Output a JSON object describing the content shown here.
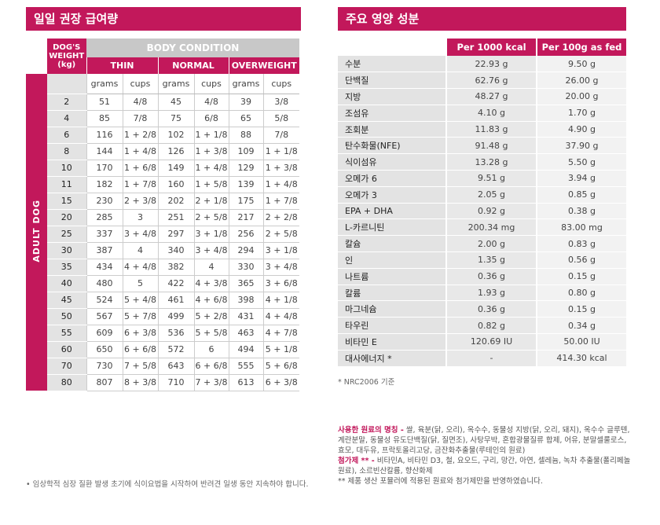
{
  "feeding": {
    "title": "일일 권장 급여량",
    "dog_weight_header": "DOG'S WEIGHT (kg)",
    "body_condition": "BODY CONDITION",
    "categories": [
      "THIN",
      "NORMAL",
      "OVERWEIGHT"
    ],
    "unit_grams": "grams",
    "unit_cups": "cups",
    "side_label": "ADULT DOG",
    "rows": [
      [
        "2",
        "51",
        "4/8",
        "45",
        "4/8",
        "39",
        "3/8"
      ],
      [
        "4",
        "85",
        "7/8",
        "75",
        "6/8",
        "65",
        "5/8"
      ],
      [
        "6",
        "116",
        "1 + 2/8",
        "102",
        "1 + 1/8",
        "88",
        "7/8"
      ],
      [
        "8",
        "144",
        "1 + 4/8",
        "126",
        "1 + 3/8",
        "109",
        "1 + 1/8"
      ],
      [
        "10",
        "170",
        "1 + 6/8",
        "149",
        "1 + 4/8",
        "129",
        "1 + 3/8"
      ],
      [
        "11",
        "182",
        "1 + 7/8",
        "160",
        "1 + 5/8",
        "139",
        "1 + 4/8"
      ],
      [
        "15",
        "230",
        "2 + 3/8",
        "202",
        "2 + 1/8",
        "175",
        "1 + 7/8"
      ],
      [
        "20",
        "285",
        "3",
        "251",
        "2 + 5/8",
        "217",
        "2 + 2/8"
      ],
      [
        "25",
        "337",
        "3 + 4/8",
        "297",
        "3 + 1/8",
        "256",
        "2 + 5/8"
      ],
      [
        "30",
        "387",
        "4",
        "340",
        "3 + 4/8",
        "294",
        "3 + 1/8"
      ],
      [
        "35",
        "434",
        "4 + 4/8",
        "382",
        "4",
        "330",
        "3 + 4/8"
      ],
      [
        "40",
        "480",
        "5",
        "422",
        "4 + 3/8",
        "365",
        "3 + 6/8"
      ],
      [
        "45",
        "524",
        "5 + 4/8",
        "461",
        "4 + 6/8",
        "398",
        "4 + 1/8"
      ],
      [
        "50",
        "567",
        "5 + 7/8",
        "499",
        "5 + 2/8",
        "431",
        "4 + 4/8"
      ],
      [
        "55",
        "609",
        "6 + 3/8",
        "536",
        "5 + 5/8",
        "463",
        "4 + 7/8"
      ],
      [
        "60",
        "650",
        "6 + 6/8",
        "572",
        "6",
        "494",
        "5 + 1/8"
      ],
      [
        "70",
        "730",
        "7 + 5/8",
        "643",
        "6 + 6/8",
        "555",
        "5 + 6/8"
      ],
      [
        "80",
        "807",
        "8 + 3/8",
        "710",
        "7 + 3/8",
        "613",
        "6 + 3/8"
      ]
    ],
    "note": "• 임상학적 심장 질환 발생 초기에 식이요법을 시작하여 반려견 일생 동안 지속하야 합니다."
  },
  "nutrition": {
    "title": "주요 영양 성분",
    "col1": "Per 1000 kcal",
    "col2": "Per 100g as fed",
    "rows": [
      [
        "수분",
        "22.93 g",
        "9.50 g"
      ],
      [
        "단백질",
        "62.76 g",
        "26.00 g"
      ],
      [
        "지방",
        "48.27 g",
        "20.00 g"
      ],
      [
        "조섬유",
        "4.10 g",
        "1.70 g"
      ],
      [
        "조회분",
        "11.83 g",
        "4.90 g"
      ],
      [
        "탄수화물(NFE)",
        "91.48 g",
        "37.90 g"
      ],
      [
        "식이섬유",
        "13.28 g",
        "5.50 g"
      ],
      [
        "오메가 6",
        "9.51 g",
        "3.94 g"
      ],
      [
        "오메가 3",
        "2.05 g",
        "0.85 g"
      ],
      [
        "EPA + DHA",
        "0.92 g",
        "0.38 g"
      ],
      [
        "L-카르니틴",
        "200.34 mg",
        "83.00 mg"
      ],
      [
        "칼슘",
        "2.00 g",
        "0.83 g"
      ],
      [
        "인",
        "1.35 g",
        "0.56 g"
      ],
      [
        "나트륨",
        "0.36 g",
        "0.15 g"
      ],
      [
        "칼륨",
        "1.93 g",
        "0.80 g"
      ],
      [
        "마그네슘",
        "0.36 g",
        "0.15 g"
      ],
      [
        "타우린",
        "0.82 g",
        "0.34 g"
      ],
      [
        "비타민 E",
        "120.69 IU",
        "50.00 IU"
      ],
      [
        "대사에너지 *",
        "-",
        "414.30 kcal"
      ]
    ],
    "nrc_note": "* NRC2006 기준"
  },
  "ingredients": {
    "label1": "사용한 원료의 명칭 -",
    "text1": " 쌀, 육분(닭, 오리), 옥수수, 동물성 지방(닭, 오리, 돼지), 옥수수 글루텐, 계란분말, 동물성 유도단백질(닭, 질면조), 사탕무박, 혼합광물질류 합제, 어유, 분말셀룰로스, 효모, 대두유, 프락토올리고당, 금잔화추출물(루테인의 원료)",
    "label2": "첨가제 ** -",
    "text2": " 비타민A, 비타민 D3, 철, 요오드, 구리, 망간, 아연, 셀레늄, 녹차 추출물(폴리페놀 원료), 소르빈산칼륨, 향산화제",
    "note": "** 제품 생산 포뮬러에 적용된 원료와 첨가제만을 반영하였습니다."
  }
}
